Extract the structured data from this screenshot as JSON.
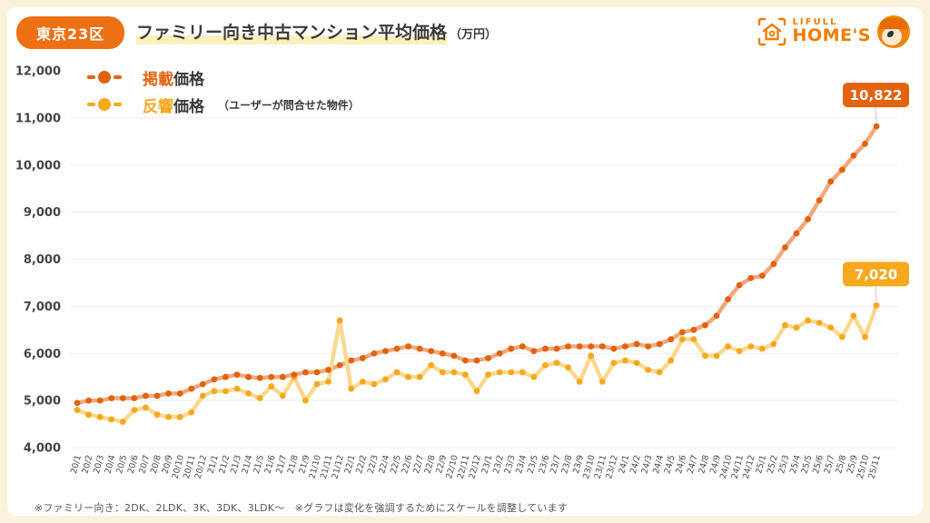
{
  "header": {
    "badge": "東京23区",
    "title": "ファミリー向き中古マンション平均価格",
    "unit": "（万円）"
  },
  "logo": {
    "top": "LIFULL",
    "bottom": "HOME'S"
  },
  "legend": [
    {
      "label_colored": "掲載",
      "label_rest": "価格",
      "note": "",
      "color": "#e2620d"
    },
    {
      "label_colored": "反響",
      "label_rest": "価格",
      "note": "（ユーザーが問合せた物件）",
      "color": "#f6a81f"
    }
  ],
  "footnote": "※ファミリー向き：2DK、2LDK、3K、3DK、3LDK〜　※グラフは変化を強調するためにスケールを調整しています",
  "colors": {
    "page_bg": "#faf2da",
    "card_bg": "#ffffff",
    "badge_bg": "#ed7013",
    "grid": "#ececec",
    "axis_text": "#454545",
    "connector": "#c0c6d4"
  },
  "chart_data": {
    "type": "line",
    "title": "ファミリー向き中古マンション平均価格（万円）",
    "ylim": [
      4000,
      12000
    ],
    "grid": true,
    "legend_position": "top-left",
    "ytick_values": [
      4000,
      5000,
      6000,
      7000,
      8000,
      9000,
      10000,
      11000,
      12000
    ],
    "ytick_labels": [
      "4,000",
      "5,000",
      "6,000",
      "7,000",
      "8,000",
      "9,000",
      "10,000",
      "11,000",
      "12,000"
    ],
    "x": [
      "20/1",
      "20/2",
      "20/3",
      "20/4",
      "20/5",
      "20/6",
      "20/7",
      "20/8",
      "20/9",
      "20/10",
      "20/11",
      "20/12",
      "21/1",
      "21/2",
      "21/3",
      "21/4",
      "21/5",
      "21/6",
      "21/7",
      "21/8",
      "21/9",
      "21/10",
      "21/11",
      "21/12",
      "22/1",
      "22/2",
      "22/3",
      "22/4",
      "22/5",
      "22/6",
      "22/7",
      "22/8",
      "22/9",
      "22/10",
      "22/11",
      "22/12",
      "23/1",
      "23/2",
      "23/3",
      "23/4",
      "23/5",
      "23/6",
      "23/7",
      "23/8",
      "23/9",
      "23/10",
      "23/11",
      "23/12",
      "24/1",
      "24/2",
      "24/3",
      "24/4",
      "24/5",
      "24/6",
      "24/7",
      "24/8",
      "24/9",
      "24/10",
      "24/11",
      "24/12",
      "25/1",
      "25/2",
      "25/3",
      "25/4",
      "25/5",
      "25/6",
      "25/7",
      "25/8",
      "25/9",
      "25/10",
      "25/11"
    ],
    "series": [
      {
        "name": "掲載価格",
        "color": "#e2620d",
        "line_color": "#f2a87d",
        "end_label": "10,822",
        "values": [
          4950,
          5000,
          5000,
          5050,
          5050,
          5050,
          5100,
          5100,
          5150,
          5150,
          5250,
          5350,
          5450,
          5500,
          5550,
          5500,
          5480,
          5500,
          5500,
          5550,
          5600,
          5600,
          5650,
          5750,
          5850,
          5900,
          6000,
          6050,
          6100,
          6150,
          6100,
          6050,
          6000,
          5950,
          5850,
          5850,
          5900,
          6000,
          6100,
          6150,
          6050,
          6100,
          6100,
          6150,
          6150,
          6150,
          6150,
          6100,
          6150,
          6200,
          6150,
          6200,
          6300,
          6450,
          6500,
          6600,
          6800,
          7150,
          7450,
          7600,
          7650,
          7900,
          8250,
          8550,
          8850,
          9250,
          9650,
          9900,
          10200,
          10450,
          10822
        ]
      },
      {
        "name": "反響価格",
        "color": "#f6a81f",
        "line_color": "#fad88e",
        "end_label": "7,020",
        "values": [
          4800,
          4700,
          4650,
          4600,
          4550,
          4800,
          4850,
          4700,
          4650,
          4650,
          4750,
          5100,
          5200,
          5200,
          5250,
          5150,
          5050,
          5300,
          5100,
          5500,
          5000,
          5350,
          5400,
          6700,
          5250,
          5400,
          5350,
          5450,
          5600,
          5500,
          5500,
          5750,
          5600,
          5600,
          5550,
          5200,
          5550,
          5600,
          5600,
          5600,
          5500,
          5750,
          5800,
          5700,
          5400,
          5950,
          5400,
          5800,
          5850,
          5800,
          5650,
          5600,
          5850,
          6300,
          6300,
          5950,
          5950,
          6150,
          6050,
          6150,
          6100,
          6200,
          6600,
          6550,
          6700,
          6650,
          6550,
          6350,
          6800,
          6350,
          7020
        ]
      }
    ]
  }
}
